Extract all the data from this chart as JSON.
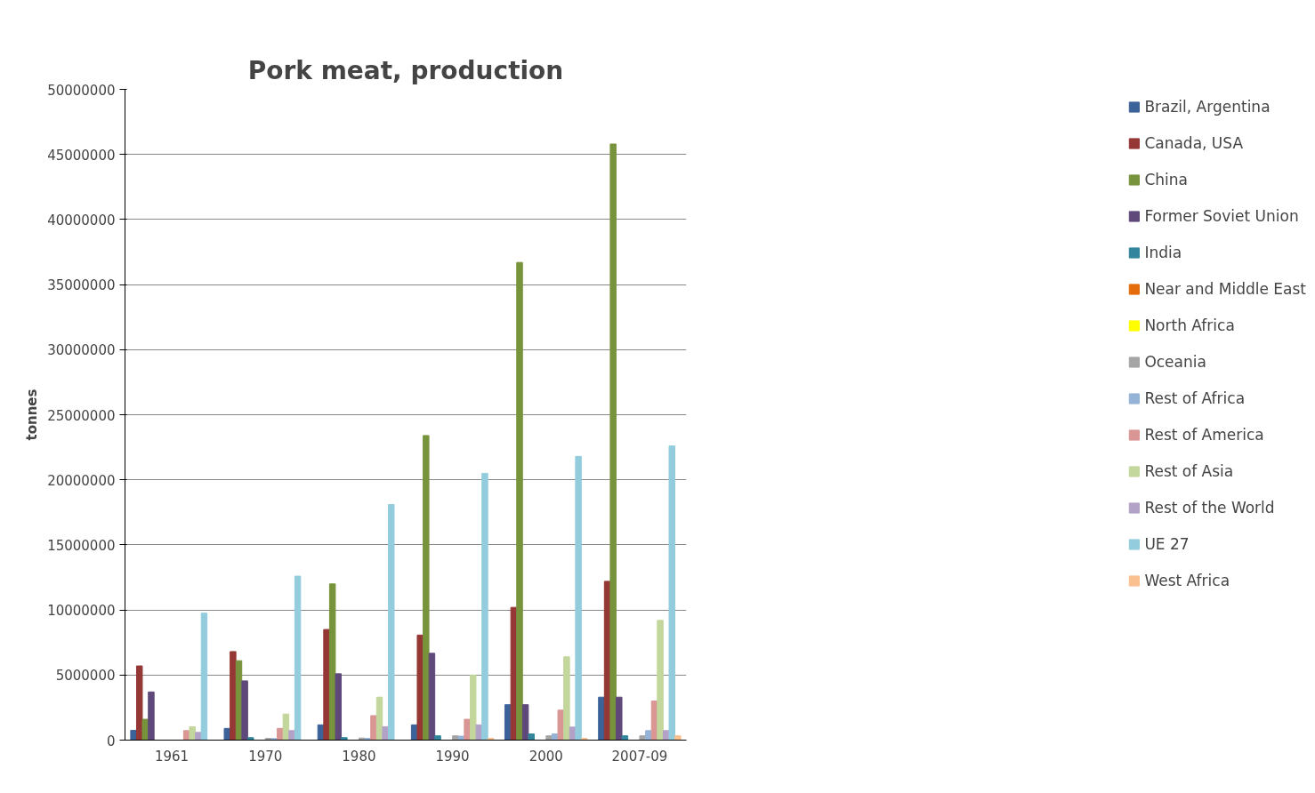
{
  "chart_data": {
    "type": "bar",
    "title": "Pork meat, production",
    "ylabel": "tonnes",
    "categories": [
      "1961",
      "1970",
      "1980",
      "1990",
      "2000",
      "2007-09"
    ],
    "ylim": [
      0,
      50000000
    ],
    "yticks": [
      0,
      5000000,
      10000000,
      15000000,
      20000000,
      25000000,
      30000000,
      35000000,
      40000000,
      45000000,
      50000000
    ],
    "grid": "y",
    "legend": "right",
    "series": [
      {
        "name": "Brazil, Argentina",
        "color": "#3c6399",
        "values": [
          750000,
          900000,
          1170000,
          1170000,
          2720000,
          3300000
        ]
      },
      {
        "name": "Canada, USA",
        "color": "#953735",
        "values": [
          5700000,
          6800000,
          8500000,
          8070000,
          10200000,
          12200000
        ]
      },
      {
        "name": "China",
        "color": "#77933c",
        "values": [
          1600000,
          6100000,
          12000000,
          23400000,
          36700000,
          45800000
        ]
      },
      {
        "name": "Former Soviet Union",
        "color": "#5f497a",
        "values": [
          3700000,
          4550000,
          5100000,
          6670000,
          2720000,
          3300000
        ]
      },
      {
        "name": "India",
        "color": "#31859c",
        "values": [
          0,
          190000,
          190000,
          330000,
          470000,
          330000
        ]
      },
      {
        "name": "Near and Middle East",
        "color": "#e46c0a",
        "values": [
          0,
          0,
          0,
          0,
          0,
          0
        ]
      },
      {
        "name": "North Africa",
        "color": "#ffff00",
        "values": [
          0,
          0,
          0,
          0,
          0,
          0
        ]
      },
      {
        "name": "Oceania",
        "color": "#a5a5a5",
        "values": [
          0,
          140000,
          160000,
          330000,
          330000,
          330000
        ]
      },
      {
        "name": "Rest of Africa",
        "color": "#95b3d7",
        "values": [
          0,
          120000,
          140000,
          300000,
          470000,
          730000
        ]
      },
      {
        "name": "Rest of America",
        "color": "#d99694",
        "values": [
          730000,
          900000,
          1880000,
          1600000,
          2300000,
          3000000
        ]
      },
      {
        "name": "Rest of Asia",
        "color": "#c3d69b",
        "values": [
          1030000,
          2000000,
          3300000,
          5000000,
          6400000,
          9200000
        ]
      },
      {
        "name": "Rest of the World",
        "color": "#b3a2c7",
        "values": [
          590000,
          730000,
          1030000,
          1170000,
          1000000,
          730000
        ]
      },
      {
        "name": "UE 27",
        "color": "#93cddd",
        "values": [
          9750000,
          12600000,
          18100000,
          20500000,
          21800000,
          22600000
        ]
      },
      {
        "name": "West Africa",
        "color": "#fac090",
        "values": [
          0,
          0,
          0,
          140000,
          140000,
          330000
        ]
      }
    ]
  }
}
